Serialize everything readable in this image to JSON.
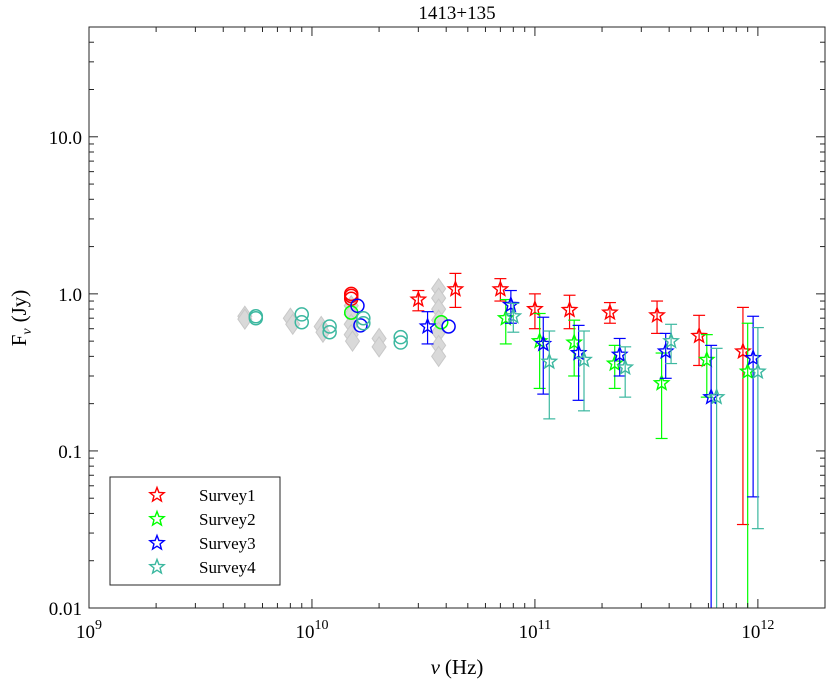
{
  "chart_data": {
    "type": "scatter",
    "title": "1413+135",
    "xlabel": {
      "symbol": "ν",
      "unit": "(Hz)"
    },
    "ylabel": {
      "base": "F",
      "sub": "ν",
      "unit": "(Jy)"
    },
    "xscale": "log",
    "yscale": "log",
    "xlim": [
      1000000000,
      2000000000000
    ],
    "ylim": [
      0.01,
      50
    ],
    "xticks": [
      {
        "value": 1000000000,
        "base": "10",
        "exp": "9"
      },
      {
        "value": 10000000000,
        "base": "10",
        "exp": "10"
      },
      {
        "value": 100000000000,
        "base": "10",
        "exp": "11"
      },
      {
        "value": 1000000000000,
        "base": "10",
        "exp": "12"
      }
    ],
    "yticks": [
      {
        "value": 0.01,
        "label": "0.01"
      },
      {
        "value": 0.1,
        "label": "0.1"
      },
      {
        "value": 1,
        "label": "1.0"
      },
      {
        "value": 10,
        "label": "10.0"
      }
    ],
    "grid": false,
    "legend_position": "bottom-left",
    "background_points": {
      "color": "#d9d9d9",
      "points": [
        {
          "x": 5000000000,
          "y": 0.72
        },
        {
          "x": 5000000000,
          "y": 0.69
        },
        {
          "x": 8000000000,
          "y": 0.7
        },
        {
          "x": 8200000000,
          "y": 0.64
        },
        {
          "x": 11000000000,
          "y": 0.62
        },
        {
          "x": 11200000000,
          "y": 0.57
        },
        {
          "x": 15000000000,
          "y": 0.84
        },
        {
          "x": 15000000000,
          "y": 0.74
        },
        {
          "x": 15000000000,
          "y": 0.64
        },
        {
          "x": 15000000000,
          "y": 0.55
        },
        {
          "x": 15200000000,
          "y": 0.5
        },
        {
          "x": 20000000000,
          "y": 0.52
        },
        {
          "x": 20000000000,
          "y": 0.46
        },
        {
          "x": 37000000000,
          "y": 1.08
        },
        {
          "x": 37000000000,
          "y": 0.94
        },
        {
          "x": 37000000000,
          "y": 0.8
        },
        {
          "x": 37000000000,
          "y": 0.68
        },
        {
          "x": 37000000000,
          "y": 0.57
        },
        {
          "x": 37000000000,
          "y": 0.47
        },
        {
          "x": 37000000000,
          "y": 0.4
        }
      ]
    },
    "series": [
      {
        "name": "Survey1",
        "color": "#ff0000",
        "circles": [
          {
            "x": 15000000000,
            "y": 1.0
          },
          {
            "x": 15000000000,
            "y": 0.97
          },
          {
            "x": 15000000000,
            "y": 0.93
          }
        ],
        "stars": [
          {
            "x": 30000000000,
            "y": 0.92,
            "lo": 0.78,
            "hi": 1.05
          },
          {
            "x": 44000000000,
            "y": 1.07,
            "lo": 0.82,
            "hi": 1.35
          },
          {
            "x": 70000000000,
            "y": 1.07,
            "lo": 0.9,
            "hi": 1.25
          },
          {
            "x": 100000000000,
            "y": 0.8,
            "lo": 0.6,
            "hi": 1.0
          },
          {
            "x": 143000000000,
            "y": 0.79,
            "lo": 0.6,
            "hi": 0.98
          },
          {
            "x": 217000000000,
            "y": 0.76,
            "lo": 0.65,
            "hi": 0.88
          },
          {
            "x": 353000000000,
            "y": 0.73,
            "lo": 0.56,
            "hi": 0.9
          },
          {
            "x": 545000000000,
            "y": 0.54,
            "lo": 0.35,
            "hi": 0.73
          },
          {
            "x": 857000000000,
            "y": 0.43,
            "lo": 0.034,
            "hi": 0.82
          }
        ]
      },
      {
        "name": "Survey2",
        "color": "#00ff00",
        "circles": [
          {
            "x": 15000000000,
            "y": 0.76
          },
          {
            "x": 38000000000,
            "y": 0.66
          }
        ],
        "stars": [
          {
            "x": 74000000000,
            "y": 0.7,
            "lo": 0.48,
            "hi": 0.92
          },
          {
            "x": 105000000000,
            "y": 0.5,
            "lo": 0.25,
            "hi": 0.75
          },
          {
            "x": 150000000000,
            "y": 0.49,
            "lo": 0.3,
            "hi": 0.68
          },
          {
            "x": 228000000000,
            "y": 0.36,
            "lo": 0.25,
            "hi": 0.47
          },
          {
            "x": 370000000000,
            "y": 0.27,
            "lo": 0.12,
            "hi": 0.42
          },
          {
            "x": 590000000000,
            "y": 0.38,
            "lo": 0.22,
            "hi": 0.55
          },
          {
            "x": 900000000000,
            "y": 0.32,
            "lo": 0.008,
            "hi": 0.65
          }
        ]
      },
      {
        "name": "Survey3",
        "color": "#0000ff",
        "circles": [
          {
            "x": 16000000000,
            "y": 0.84
          },
          {
            "x": 16500000000,
            "y": 0.63
          },
          {
            "x": 41000000000,
            "y": 0.62
          }
        ],
        "stars": [
          {
            "x": 33000000000,
            "y": 0.62,
            "lo": 0.48,
            "hi": 0.77
          },
          {
            "x": 78000000000,
            "y": 0.85,
            "lo": 0.65,
            "hi": 1.05
          },
          {
            "x": 109000000000,
            "y": 0.48,
            "lo": 0.23,
            "hi": 0.71
          },
          {
            "x": 157000000000,
            "y": 0.42,
            "lo": 0.21,
            "hi": 0.63
          },
          {
            "x": 240000000000,
            "y": 0.41,
            "lo": 0.3,
            "hi": 0.52
          },
          {
            "x": 386000000000,
            "y": 0.43,
            "lo": 0.29,
            "hi": 0.56
          },
          {
            "x": 617000000000,
            "y": 0.22,
            "lo": 0.008,
            "hi": 0.47
          },
          {
            "x": 952000000000,
            "y": 0.39,
            "lo": 0.051,
            "hi": 0.72
          }
        ]
      },
      {
        "name": "Survey4",
        "color": "#3cb8a0",
        "circles": [
          {
            "x": 5600000000,
            "y": 0.72
          },
          {
            "x": 5600000000,
            "y": 0.7
          },
          {
            "x": 9000000000,
            "y": 0.74
          },
          {
            "x": 9000000000,
            "y": 0.66
          },
          {
            "x": 12000000000,
            "y": 0.62
          },
          {
            "x": 12000000000,
            "y": 0.57
          },
          {
            "x": 17000000000,
            "y": 0.7
          },
          {
            "x": 17000000000,
            "y": 0.65
          },
          {
            "x": 25000000000,
            "y": 0.53
          },
          {
            "x": 25000000000,
            "y": 0.49
          }
        ],
        "stars": [
          {
            "x": 80000000000,
            "y": 0.72,
            "lo": 0.57,
            "hi": 0.87
          },
          {
            "x": 116000000000,
            "y": 0.37,
            "lo": 0.16,
            "hi": 0.58
          },
          {
            "x": 166000000000,
            "y": 0.38,
            "lo": 0.18,
            "hi": 0.58
          },
          {
            "x": 254000000000,
            "y": 0.34,
            "lo": 0.22,
            "hi": 0.46
          },
          {
            "x": 408000000000,
            "y": 0.5,
            "lo": 0.36,
            "hi": 0.64
          },
          {
            "x": 653000000000,
            "y": 0.22,
            "lo": 0.008,
            "hi": 0.45
          },
          {
            "x": 1000000000000,
            "y": 0.32,
            "lo": 0.032,
            "hi": 0.61
          }
        ]
      }
    ]
  }
}
